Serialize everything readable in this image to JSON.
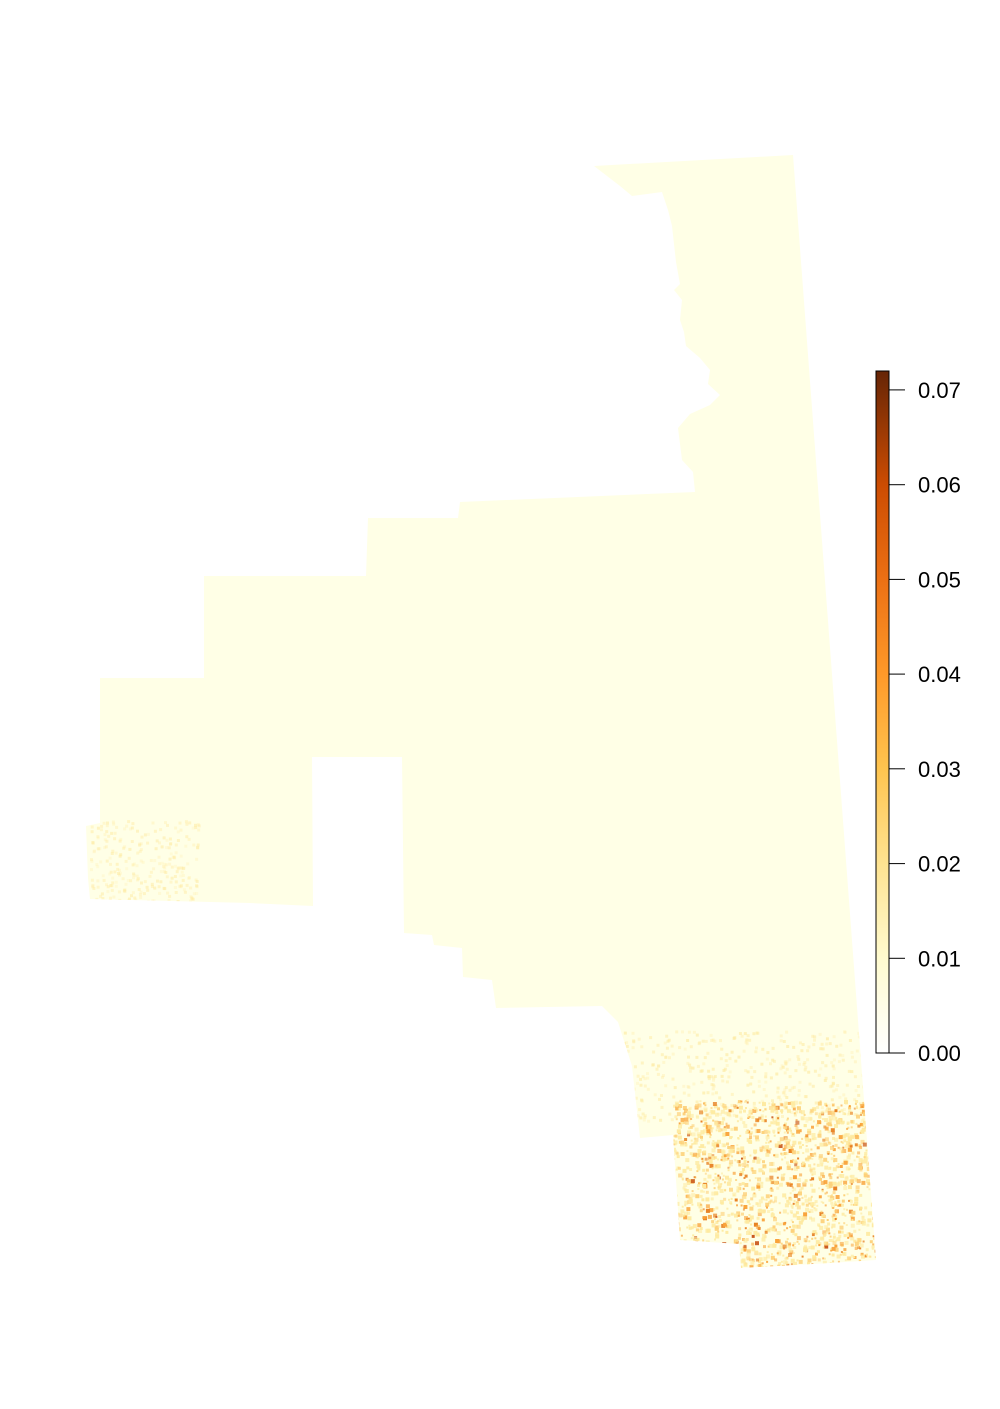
{
  "map": {
    "background_color": "#ffffff",
    "base_fill_color": "#FFFFE6",
    "hotspot_colors": [
      "#FEEAA0",
      "#FDD17A",
      "#F9A33A",
      "#E77F1F",
      "#C9561A"
    ]
  },
  "legend": {
    "type": "continuous colour bar",
    "min": 0.0,
    "max": 0.072,
    "color_stops": [
      {
        "value": 0.0,
        "color": "#FFFFFF"
      },
      {
        "value": 0.01,
        "color": "#FFFBCF"
      },
      {
        "value": 0.02,
        "color": "#FEE391"
      },
      {
        "value": 0.03,
        "color": "#FEC44F"
      },
      {
        "value": 0.04,
        "color": "#FE9929"
      },
      {
        "value": 0.05,
        "color": "#EC7014"
      },
      {
        "value": 0.06,
        "color": "#CC4C02"
      },
      {
        "value": 0.072,
        "color": "#662506"
      }
    ],
    "ticks": [
      {
        "value": 0.0,
        "label": "0.00"
      },
      {
        "value": 0.01,
        "label": "0.01"
      },
      {
        "value": 0.02,
        "label": "0.02"
      },
      {
        "value": 0.03,
        "label": "0.03"
      },
      {
        "value": 0.04,
        "label": "0.04"
      },
      {
        "value": 0.05,
        "label": "0.05"
      },
      {
        "value": 0.06,
        "label": "0.06"
      },
      {
        "value": 0.07,
        "label": "0.07"
      }
    ]
  }
}
